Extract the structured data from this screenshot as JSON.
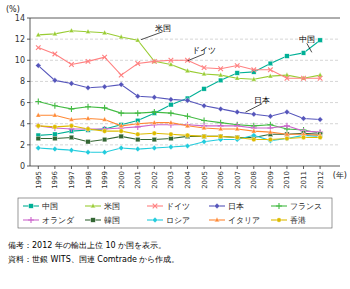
{
  "chart_data": {
    "type": "line",
    "x": [
      1995,
      1996,
      1997,
      1998,
      1999,
      2000,
      2001,
      2002,
      2003,
      2004,
      2005,
      2006,
      2007,
      2008,
      2009,
      2010,
      2011,
      2012
    ],
    "xlim": [
      1994.5,
      2013.2
    ],
    "xticks": [
      1995,
      1996,
      1997,
      1998,
      1999,
      2000,
      2001,
      2002,
      2003,
      2004,
      2005,
      2006,
      2007,
      2008,
      2009,
      2010,
      2011,
      2012
    ],
    "ylim": [
      0,
      14
    ],
    "yticks": [
      0,
      2,
      4,
      6,
      8,
      10,
      12,
      14
    ],
    "y_label": "(%)",
    "x_label": "(年)",
    "grid": true,
    "legend": "bottom",
    "series": [
      {
        "name": "中国",
        "color": "#00b096",
        "marker": "square",
        "values": [
          2.9,
          3.0,
          3.3,
          3.4,
          3.5,
          3.9,
          4.3,
          5.0,
          5.8,
          6.4,
          7.3,
          8.1,
          8.8,
          8.9,
          9.7,
          10.4,
          10.7,
          11.9
        ]
      },
      {
        "name": "米国",
        "color": "#99cc33",
        "marker": "triangle",
        "values": [
          12.4,
          12.5,
          12.8,
          12.7,
          12.6,
          12.2,
          11.9,
          9.9,
          9.6,
          9.0,
          8.7,
          8.6,
          8.3,
          8.2,
          8.5,
          8.6,
          8.3,
          8.6
        ]
      },
      {
        "name": "ドイツ",
        "color": "#ff8080",
        "marker": "x",
        "values": [
          11.2,
          10.6,
          9.6,
          9.9,
          10.3,
          8.6,
          9.7,
          9.9,
          10.0,
          10.0,
          9.3,
          9.2,
          9.5,
          9.1,
          9.1,
          8.3,
          8.3,
          8.3
        ]
      },
      {
        "name": "日本",
        "color": "#5555bb",
        "marker": "diamond",
        "values": [
          9.5,
          8.1,
          7.8,
          7.4,
          7.5,
          7.7,
          6.6,
          6.5,
          6.3,
          6.2,
          5.7,
          5.4,
          5.1,
          4.9,
          4.7,
          5.1,
          4.5,
          4.4
        ]
      },
      {
        "name": "フランス",
        "color": "#44bb44",
        "marker": "plus",
        "values": [
          6.1,
          5.7,
          5.4,
          5.6,
          5.5,
          5.0,
          5.0,
          5.1,
          5.0,
          4.7,
          4.3,
          4.1,
          3.9,
          3.8,
          3.9,
          3.5,
          3.4,
          3.1
        ]
      },
      {
        "name": "オランダ",
        "color": "#cc66cc",
        "marker": "plus",
        "values": [
          3.8,
          3.6,
          3.5,
          3.5,
          3.5,
          3.6,
          3.7,
          3.9,
          3.9,
          3.9,
          3.8,
          3.8,
          3.8,
          3.6,
          3.6,
          3.8,
          3.3,
          3.2
        ]
      },
      {
        "name": "韓国",
        "color": "#336633",
        "marker": "square",
        "values": [
          2.6,
          2.6,
          2.7,
          2.3,
          2.5,
          2.8,
          2.5,
          2.5,
          2.6,
          2.8,
          2.8,
          2.8,
          2.7,
          2.7,
          3.0,
          3.0,
          3.1,
          3.0
        ]
      },
      {
        "name": "ロシア",
        "color": "#22ccdd",
        "marker": "diamond",
        "values": [
          1.7,
          1.6,
          1.5,
          1.3,
          1.3,
          1.7,
          1.6,
          1.7,
          1.8,
          1.9,
          2.3,
          2.5,
          2.5,
          2.9,
          2.4,
          2.6,
          2.9,
          2.8
        ]
      },
      {
        "name": "イタリア",
        "color": "#ff8833",
        "marker": "triangle",
        "values": [
          4.8,
          4.8,
          4.4,
          4.5,
          4.4,
          3.8,
          4.0,
          4.1,
          4.1,
          3.8,
          3.6,
          3.5,
          3.5,
          3.3,
          3.2,
          3.0,
          3.0,
          2.9
        ]
      },
      {
        "name": "香港",
        "color": "#ddbb00",
        "marker": "circle",
        "values": [
          3.8,
          3.7,
          3.8,
          3.5,
          3.3,
          3.3,
          3.0,
          3.1,
          3.0,
          2.9,
          2.8,
          2.8,
          2.7,
          2.5,
          2.5,
          2.6,
          2.7,
          2.7
        ]
      }
    ],
    "annotations": [
      {
        "text": "米国",
        "xy": [
          2001.2,
          11.95
        ],
        "xytext": [
          2002.5,
          12.7
        ]
      },
      {
        "text": "中国",
        "xy": [
          2011.5,
          10.75
        ],
        "xytext": [
          2011.2,
          11.6
        ]
      },
      {
        "text": "ドイツ",
        "xy": [
          2004.0,
          9.95
        ],
        "xytext": [
          2005.0,
          10.6
        ]
      },
      {
        "text": "日本",
        "xy": [
          2007.5,
          5.1
        ],
        "xytext": [
          2008.5,
          5.9
        ]
      }
    ],
    "notes": [
      "備考：2012 年の輸出上位 10 か国を表示。",
      "資料：世銀 WITS、国連 Comtrade から作成。"
    ]
  }
}
